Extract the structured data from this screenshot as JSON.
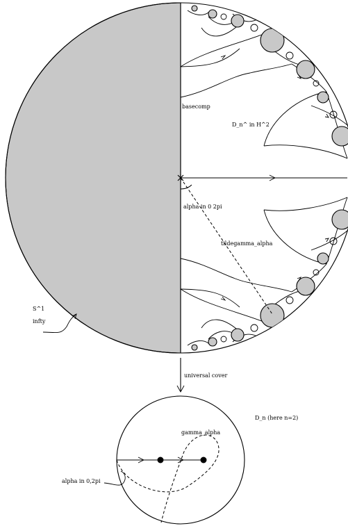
{
  "labels": {
    "basecomp": "basecomp",
    "dn_hat": "D_n^ in H^2",
    "alpha_top": "alpha in 0 2pi",
    "tildegamma": "tildegamma_alpha",
    "s1": "S^1",
    "infty": "infty",
    "universal_cover": "universal cover",
    "dn": "D_n (here n=2)",
    "gamma_alpha": "gamma_alpha",
    "alpha_bottom": "alpha in 0,2pi"
  },
  "colors": {
    "shade": "#c8c8c8",
    "line": "#000000",
    "background": "#ffffff"
  }
}
